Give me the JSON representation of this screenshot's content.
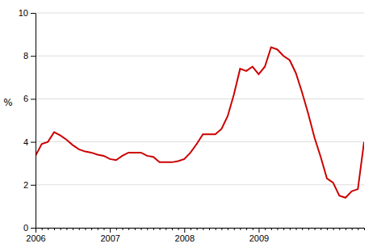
{
  "chart_data": {
    "type": "line",
    "y_label": "%",
    "categories": [
      "2006",
      null,
      null,
      null,
      null,
      null,
      null,
      null,
      null,
      null,
      null,
      null,
      "2007",
      null,
      null,
      null,
      null,
      null,
      null,
      null,
      null,
      null,
      null,
      null,
      "2008",
      null,
      null,
      null,
      null,
      null,
      null,
      null,
      null,
      null,
      null,
      null,
      "2009",
      null,
      null,
      null,
      null,
      null,
      null,
      null,
      null,
      null,
      null,
      null,
      null,
      null,
      null,
      null,
      null,
      null
    ],
    "values": [
      3.35,
      3.9,
      4.0,
      4.45,
      4.3,
      4.1,
      3.85,
      3.65,
      3.55,
      3.5,
      3.4,
      3.35,
      3.2,
      3.15,
      3.35,
      3.5,
      3.5,
      3.5,
      3.35,
      3.3,
      3.05,
      3.05,
      3.05,
      3.1,
      3.2,
      3.5,
      3.9,
      4.35,
      4.35,
      4.35,
      4.6,
      5.2,
      6.2,
      7.4,
      7.3,
      7.5,
      7.15,
      7.5,
      8.4,
      8.3,
      8.0,
      7.8,
      7.2,
      6.3,
      5.3,
      4.2,
      3.3,
      2.3,
      2.1,
      1.5,
      1.4,
      1.7,
      1.8,
      4.0
    ],
    "color": "#cc0000",
    "ylim": [
      0,
      10
    ],
    "yticks": [
      0,
      2,
      4,
      6,
      8,
      10
    ],
    "grid": true
  }
}
